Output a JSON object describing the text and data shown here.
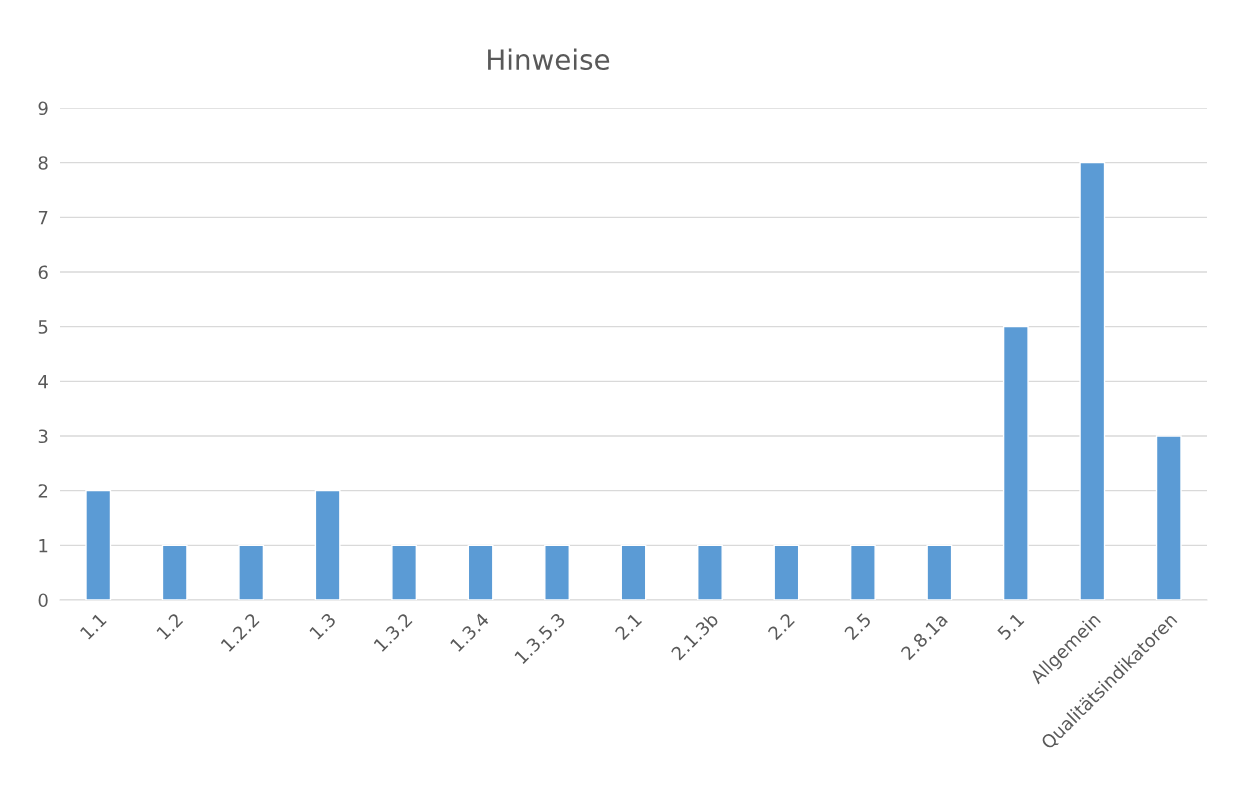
{
  "chart_data": {
    "type": "bar",
    "title": "Hinweise",
    "categories": [
      "1.1",
      "1.2",
      "1.2.2",
      "1.3",
      "1.3.2",
      "1.3.4",
      "1.3.5.3",
      "2.1",
      "2.1.3b",
      "2.2",
      "2.5",
      "2.8.1a",
      "5.1",
      "Allgemein",
      "Qualitätsindikatoren"
    ],
    "values": [
      2,
      1,
      1,
      2,
      1,
      1,
      1,
      1,
      1,
      1,
      1,
      1,
      5,
      8,
      3
    ],
    "color": "#5b9bd5",
    "ylim": [
      0,
      9
    ],
    "yticks": [
      0,
      1,
      2,
      3,
      4,
      5,
      6,
      7,
      8,
      9
    ],
    "grid": "y"
  }
}
